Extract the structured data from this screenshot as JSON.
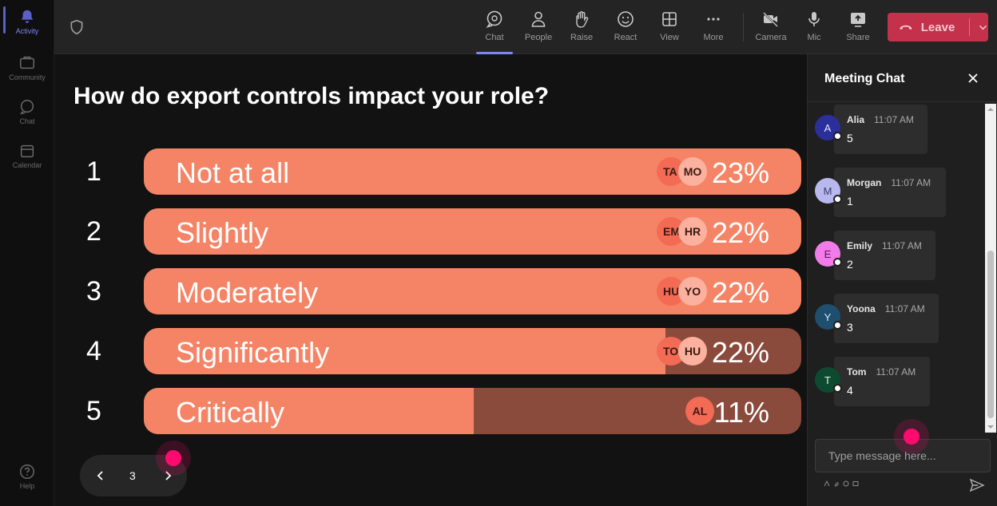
{
  "rail": {
    "items": [
      {
        "label": "Activity",
        "icon": "bell-icon",
        "active": true
      },
      {
        "label": "Community",
        "icon": "community-icon",
        "active": false
      },
      {
        "label": "Chat",
        "icon": "chat-icon",
        "active": false
      },
      {
        "label": "Calendar",
        "icon": "calendar-icon",
        "active": false
      }
    ],
    "help": "Help"
  },
  "toolbar": {
    "chat": "Chat",
    "people": "People",
    "raise": "Raise",
    "react": "React",
    "view": "View",
    "more": "More",
    "camera": "Camera",
    "mic": "Mic",
    "share": "Share",
    "leave": "Leave"
  },
  "poll": {
    "question": "How do export controls impact your role?",
    "options": [
      {
        "num": "1",
        "label": "Not at all",
        "percent": "23%",
        "fill": 1.0,
        "avatars": [
          "TA",
          "MO"
        ]
      },
      {
        "num": "2",
        "label": "Slightly",
        "percent": "22%",
        "fill": 1.0,
        "avatars": [
          "EM",
          "HR"
        ]
      },
      {
        "num": "3",
        "label": "Moderately",
        "percent": "22%",
        "fill": 1.0,
        "avatars": [
          "HU",
          "YO"
        ]
      },
      {
        "num": "4",
        "label": "Significantly",
        "percent": "22%",
        "fill": 0.794,
        "avatars": [
          "TO",
          "HU"
        ]
      },
      {
        "num": "5",
        "label": "Critically",
        "percent": "11%",
        "fill": 0.502,
        "avatars": [
          "AL"
        ]
      }
    ],
    "page": "3"
  },
  "chat": {
    "title": "Meeting Chat",
    "messages": [
      {
        "initial": "A",
        "name": "Alia",
        "time": "11:07 AM",
        "text": "5",
        "color": "#2b2f9c",
        "textColor": "#e8e8ff"
      },
      {
        "initial": "M",
        "name": "Morgan",
        "time": "11:07 AM",
        "text": "1",
        "color": "#b9b8ee",
        "textColor": "#3b3a6a"
      },
      {
        "initial": "E",
        "name": "Emily",
        "time": "11:07 AM",
        "text": "2",
        "color": "#f27bea",
        "textColor": "#5a1455"
      },
      {
        "initial": "Y",
        "name": "Yoona",
        "time": "11:07 AM",
        "text": "3",
        "color": "#1e4f6e",
        "textColor": "#d6ecfa"
      },
      {
        "initial": "T",
        "name": "Tom",
        "time": "11:07 AM",
        "text": "4",
        "color": "#0d4a2f",
        "textColor": "#d8f3e4"
      }
    ],
    "placeholder": "Type message here..."
  }
}
